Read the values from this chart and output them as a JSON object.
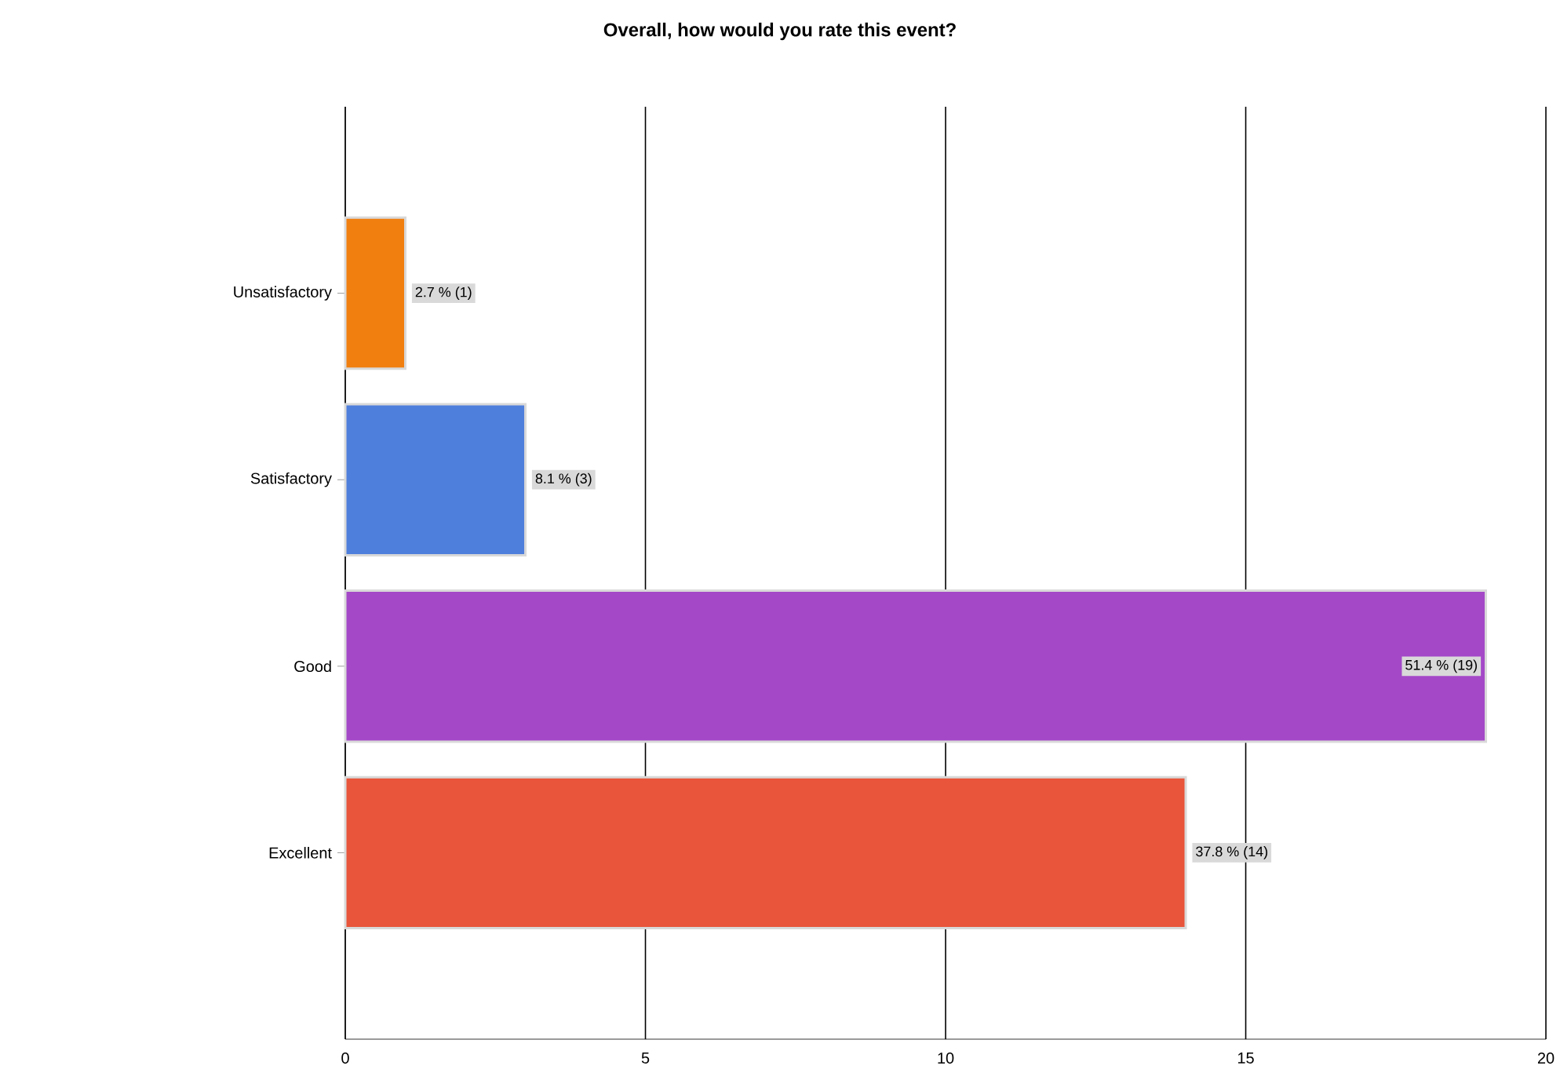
{
  "chart_data": {
    "type": "bar",
    "orientation": "horizontal",
    "title": "Overall, how would you rate this event?",
    "categories": [
      "Unsatisfactory",
      "Satisfactory",
      "Good",
      "Excellent"
    ],
    "values": [
      1,
      3,
      19,
      14
    ],
    "colors": [
      "#f07f10",
      "#4f7fdc",
      "#a448c8",
      "#e8553a"
    ],
    "value_labels": [
      "2.7 % (1)",
      "8.1 % (3)",
      "51.4 % (19)",
      "37.8 % (14)"
    ],
    "xlim": [
      0,
      20
    ],
    "xticks": [
      0,
      5,
      10,
      15,
      20
    ],
    "grid": "x"
  }
}
